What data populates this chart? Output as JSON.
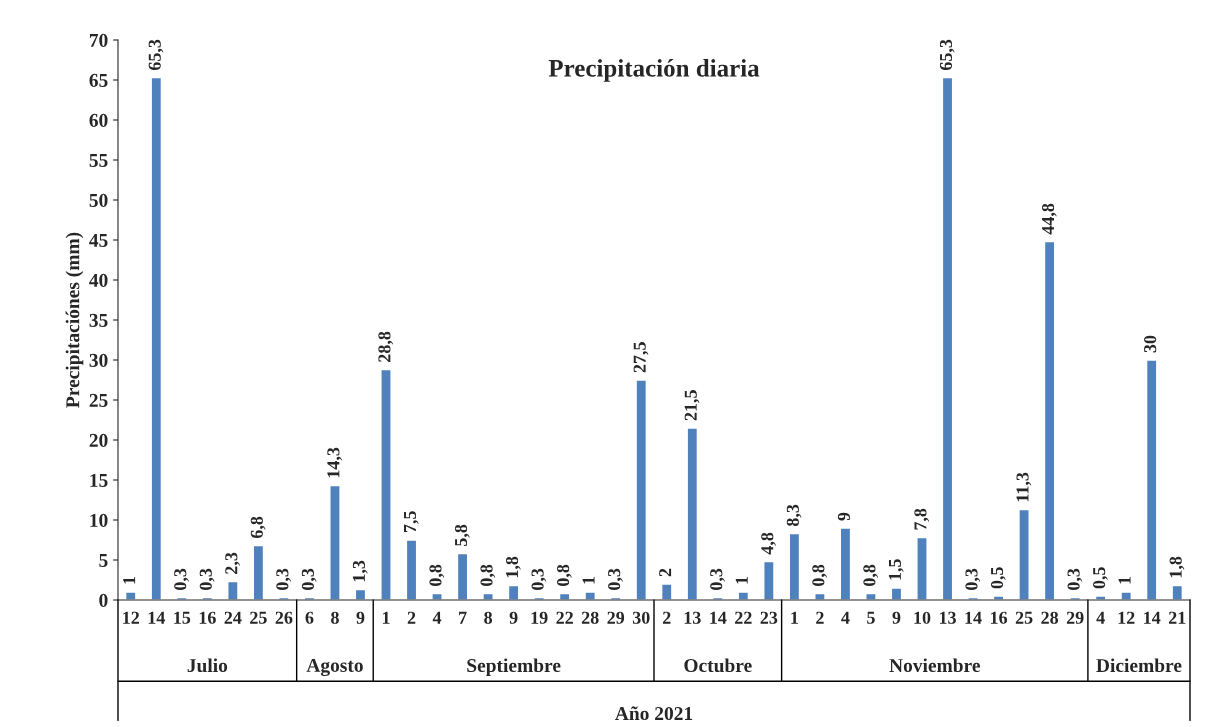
{
  "chart_data": {
    "type": "bar",
    "title": "Precipitación diaria",
    "ylabel": "Precipitaciónes (mm)",
    "xlabel": "Año 2021",
    "categories": [
      "12",
      "14",
      "15",
      "16",
      "24",
      "25",
      "26",
      "6",
      "8",
      "9",
      "1",
      "2",
      "4",
      "7",
      "8",
      "9",
      "19",
      "22",
      "28",
      "29",
      "30",
      "2",
      "13",
      "14",
      "22",
      "23",
      "1",
      "2",
      "4",
      "5",
      "9",
      "10",
      "13",
      "14",
      "16",
      "25",
      "28",
      "29",
      "4",
      "12",
      "14",
      "21"
    ],
    "values": [
      1,
      65.3,
      0.3,
      0.3,
      2.3,
      6.8,
      0.3,
      0.3,
      14.3,
      1.3,
      28.8,
      7.5,
      0.8,
      5.8,
      0.8,
      1.8,
      0.3,
      0.8,
      1,
      0.3,
      27.5,
      2,
      21.5,
      0.3,
      1,
      4.8,
      8.3,
      0.8,
      9,
      0.8,
      1.5,
      7.8,
      65.3,
      0.3,
      0.5,
      11.3,
      44.8,
      0.3,
      0.5,
      1,
      30,
      1.8
    ],
    "value_labels": [
      "1",
      "65,3",
      "0,3",
      "0,3",
      "2,3",
      "6,8",
      "0,3",
      "0,3",
      "14,3",
      "1,3",
      "28,8",
      "7,5",
      "0,8",
      "5,8",
      "0,8",
      "1,8",
      "0,3",
      "0,8",
      "1",
      "0,3",
      "27,5",
      "2",
      "21,5",
      "0,3",
      "1",
      "4,8",
      "8,3",
      "0,8",
      "9",
      "0,8",
      "1,5",
      "7,8",
      "65,3",
      "0,3",
      "0,5",
      "11,3",
      "44,8",
      "0,3",
      "0,5",
      "1",
      "30",
      "1,8"
    ],
    "annotations": [
      "Julio",
      "Agosto",
      "Septiembre",
      "Octubre",
      "Noviembre",
      "Diciembre"
    ],
    "color": "#4f81bd",
    "ylim": [
      0,
      70
    ],
    "yticks": [
      0,
      5,
      10,
      15,
      20,
      25,
      30,
      35,
      40,
      45,
      50,
      55,
      60,
      65,
      70
    ],
    "grid": false,
    "legend": false
  }
}
